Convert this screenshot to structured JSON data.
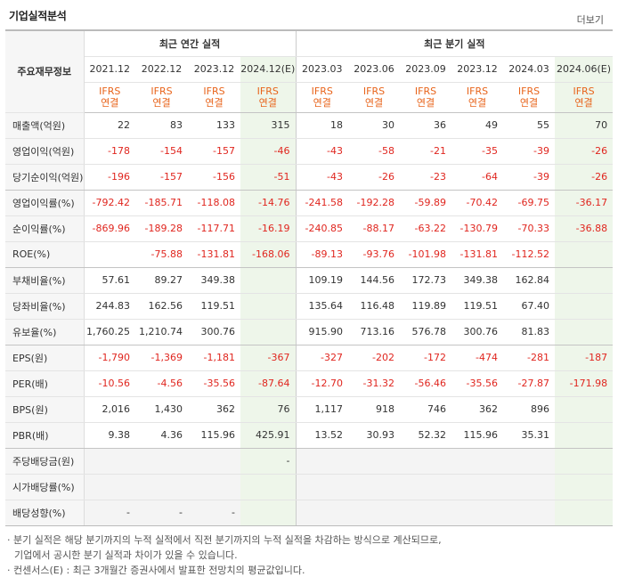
{
  "title": "기업실적분석",
  "more_label": "더보기",
  "header": {
    "row_label": "주요재무정보",
    "annual_label": "최근 연간 실적",
    "quarter_label": "최근 분기 실적",
    "periods": [
      "2021.12",
      "2022.12",
      "2023.12",
      "2024.12(E)",
      "2023.03",
      "2023.06",
      "2023.09",
      "2023.12",
      "2024.03",
      "2024.06(E)"
    ],
    "ifrs_top": "IFRS",
    "ifrs_bottom": "연결"
  },
  "rows": [
    {
      "label": "매출액(억원)",
      "values": [
        "22",
        "83",
        "133",
        "315",
        "18",
        "30",
        "36",
        "49",
        "55",
        "70"
      ]
    },
    {
      "label": "영업이익(억원)",
      "values": [
        "-178",
        "-154",
        "-157",
        "-46",
        "-43",
        "-58",
        "-21",
        "-35",
        "-39",
        "-26"
      ]
    },
    {
      "label": "당기순이익(억원)",
      "values": [
        "-196",
        "-157",
        "-156",
        "-51",
        "-43",
        "-26",
        "-23",
        "-64",
        "-39",
        "-26"
      ]
    },
    {
      "label": "영업이익률(%)",
      "values": [
        "-792.42",
        "-185.71",
        "-118.08",
        "-14.76",
        "-241.58",
        "-192.28",
        "-59.89",
        "-70.42",
        "-69.75",
        "-36.17"
      ]
    },
    {
      "label": "순이익률(%)",
      "values": [
        "-869.96",
        "-189.28",
        "-117.71",
        "-16.19",
        "-240.85",
        "-88.17",
        "-63.22",
        "-130.79",
        "-70.33",
        "-36.88"
      ]
    },
    {
      "label": "ROE(%)",
      "values": [
        "",
        "-75.88",
        "-131.81",
        "-168.06",
        "-89.13",
        "-93.76",
        "-101.98",
        "-131.81",
        "-112.52",
        ""
      ]
    },
    {
      "label": "부채비율(%)",
      "values": [
        "57.61",
        "89.27",
        "349.38",
        "",
        "109.19",
        "144.56",
        "172.73",
        "349.38",
        "162.84",
        ""
      ]
    },
    {
      "label": "당좌비율(%)",
      "values": [
        "244.83",
        "162.56",
        "119.51",
        "",
        "135.64",
        "116.48",
        "119.89",
        "119.51",
        "67.40",
        ""
      ]
    },
    {
      "label": "유보율(%)",
      "values": [
        "1,760.25",
        "1,210.74",
        "300.76",
        "",
        "915.90",
        "713.16",
        "576.78",
        "300.76",
        "81.83",
        ""
      ]
    },
    {
      "label": "EPS(원)",
      "values": [
        "-1,790",
        "-1,369",
        "-1,181",
        "-367",
        "-327",
        "-202",
        "-172",
        "-474",
        "-281",
        "-187"
      ]
    },
    {
      "label": "PER(배)",
      "values": [
        "-10.56",
        "-4.56",
        "-35.56",
        "-87.64",
        "-12.70",
        "-31.32",
        "-56.46",
        "-35.56",
        "-27.87",
        "-171.98"
      ]
    },
    {
      "label": "BPS(원)",
      "values": [
        "2,016",
        "1,430",
        "362",
        "76",
        "1,117",
        "918",
        "746",
        "362",
        "896",
        ""
      ]
    },
    {
      "label": "PBR(배)",
      "values": [
        "9.38",
        "4.36",
        "115.96",
        "425.91",
        "13.52",
        "30.93",
        "52.32",
        "115.96",
        "35.31",
        ""
      ]
    },
    {
      "label": "주당배당금(원)",
      "values": [
        "",
        "",
        "",
        "-",
        "",
        "",
        "",
        "",
        "",
        ""
      ]
    },
    {
      "label": "시가배당률(%)",
      "values": [
        "",
        "",
        "",
        "",
        "",
        "",
        "",
        "",
        "",
        ""
      ]
    },
    {
      "label": "배당성향(%)",
      "values": [
        "-",
        "-",
        "-",
        "",
        "",
        "",
        "",
        "",
        "",
        ""
      ]
    }
  ],
  "notes": [
    "· 분기 실적은 해당 분기까지의 누적 실적에서 직전 분기까지의 누적 실적을 차감하는 방식으로 계산되므로,",
    "기업에서 공시한 분기 실적과 차이가 있을 수 있습니다.",
    "· 컨센서스(E) : 최근 3개월간 증권사에서 발표한 전망치의 평균값입니다."
  ]
}
